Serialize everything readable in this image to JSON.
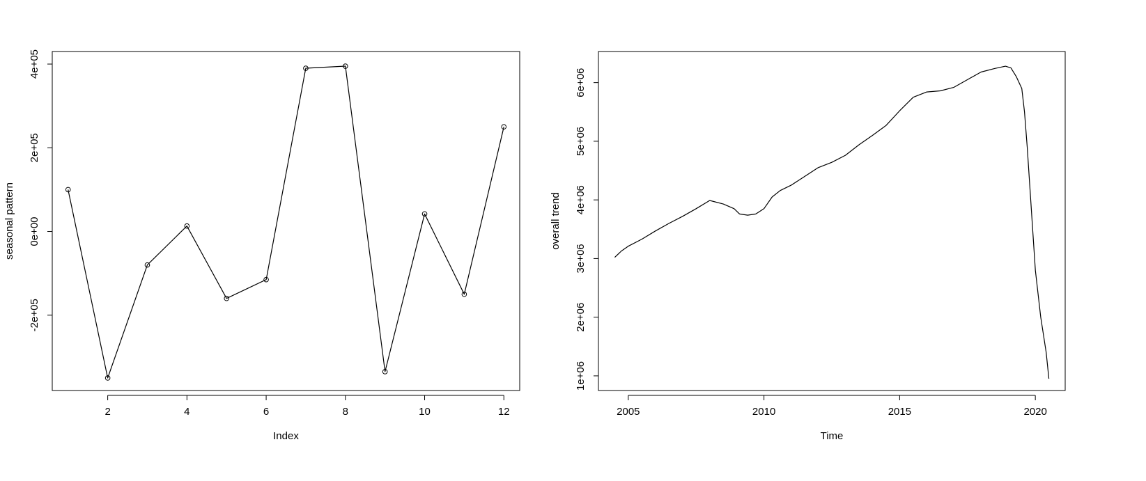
{
  "chart_data": [
    {
      "type": "line",
      "xlabel": "Index",
      "ylabel": "seasonal pattern",
      "markers": "open-circle",
      "color": "#000000",
      "xlim": [
        0.6,
        12.4
      ],
      "ylim": [
        -380000,
        430000
      ],
      "xticks": [
        2,
        4,
        6,
        8,
        10,
        12
      ],
      "xtick_labels": [
        "2",
        "4",
        "6",
        "8",
        "10",
        "12"
      ],
      "yticks": [
        -200000,
        0,
        200000,
        400000
      ],
      "ytick_labels": [
        "-2e+05",
        "0e+00",
        "2e+05",
        "4e+05"
      ],
      "x": [
        1,
        2,
        3,
        4,
        5,
        6,
        7,
        8,
        9,
        10,
        11,
        12
      ],
      "y": [
        100000,
        -350000,
        -80000,
        13000,
        -160000,
        -115000,
        390000,
        395000,
        -335000,
        42000,
        -150000,
        250000
      ]
    },
    {
      "type": "line",
      "xlabel": "Time",
      "ylabel": "overall trend",
      "color": "#000000",
      "xlim": [
        2003.9,
        2021.1
      ],
      "ylim": [
        750000,
        6530000
      ],
      "xticks": [
        2005,
        2010,
        2015,
        2020
      ],
      "xtick_labels": [
        "2005",
        "2010",
        "2015",
        "2020"
      ],
      "yticks": [
        1000000,
        2000000,
        3000000,
        4000000,
        5000000,
        6000000
      ],
      "ytick_labels": [
        "1e+06",
        "2e+06",
        "3e+06",
        "4e+06",
        "5e+06",
        "6e+06"
      ],
      "x": [
        2004.5,
        2004.75,
        2005.0,
        2005.5,
        2006.0,
        2006.5,
        2007.0,
        2007.5,
        2008.0,
        2008.5,
        2008.9,
        2009.1,
        2009.4,
        2009.7,
        2010.0,
        2010.3,
        2010.6,
        2011.0,
        2011.5,
        2012.0,
        2012.5,
        2013.0,
        2013.5,
        2014.0,
        2014.5,
        2015.0,
        2015.5,
        2016.0,
        2016.5,
        2017.0,
        2017.5,
        2018.0,
        2018.5,
        2018.9,
        2019.1,
        2019.3,
        2019.5,
        2019.6,
        2019.7,
        2019.8,
        2019.9,
        2020.0,
        2020.2,
        2020.4,
        2020.5
      ],
      "y": [
        3020000,
        3130000,
        3210000,
        3330000,
        3470000,
        3600000,
        3720000,
        3850000,
        3990000,
        3930000,
        3850000,
        3760000,
        3740000,
        3760000,
        3850000,
        4050000,
        4160000,
        4250000,
        4400000,
        4550000,
        4640000,
        4760000,
        4940000,
        5100000,
        5270000,
        5520000,
        5750000,
        5840000,
        5860000,
        5920000,
        6050000,
        6180000,
        6240000,
        6280000,
        6250000,
        6100000,
        5900000,
        5500000,
        4900000,
        4200000,
        3500000,
        2800000,
        2000000,
        1400000,
        950000
      ]
    }
  ]
}
